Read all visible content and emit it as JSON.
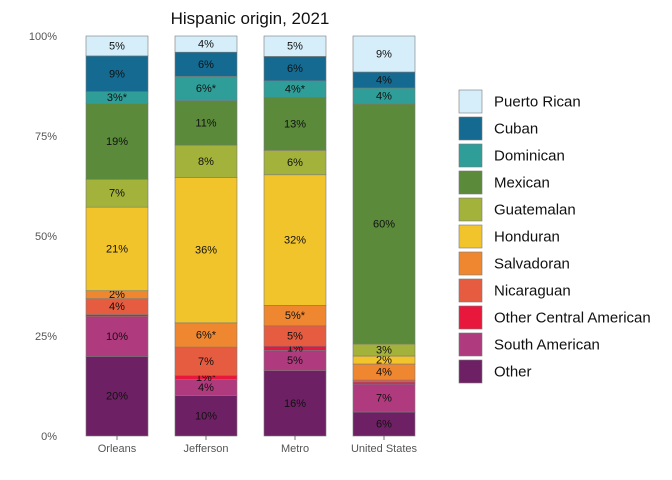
{
  "chart_data": {
    "type": "bar",
    "stacked": true,
    "title": "Hispanic origin, 2021",
    "xlabel": "",
    "ylabel": "",
    "ylim": [
      0,
      100
    ],
    "y_ticks": [
      0,
      25,
      50,
      75,
      100
    ],
    "y_tick_labels": [
      "0%",
      "25%",
      "50%",
      "75%",
      "100%"
    ],
    "categories": [
      "Orleans",
      "Jefferson",
      "Metro",
      "United States"
    ],
    "legend_position": "right",
    "grid": false,
    "series": [
      {
        "name": "Other",
        "color": "#6e2064",
        "values": [
          20,
          10,
          16,
          6
        ],
        "labels": [
          "20%",
          "10%",
          "16%",
          "6%"
        ]
      },
      {
        "name": "South American",
        "color": "#b03a7e",
        "values": [
          10,
          4,
          5,
          7
        ],
        "labels": [
          "10%",
          "4%",
          "5%",
          "7%"
        ]
      },
      {
        "name": "Other Central American",
        "color": "#e8173c",
        "values": [
          0.5,
          1,
          1,
          0.5
        ],
        "labels": [
          "",
          "1%*",
          "1%",
          ""
        ]
      },
      {
        "name": "Nicaraguan",
        "color": "#e65c40",
        "values": [
          4,
          7,
          5,
          0.5
        ],
        "labels": [
          "4%",
          "7%",
          "5%",
          ""
        ]
      },
      {
        "name": "Salvadoran",
        "color": "#ef8731",
        "values": [
          2,
          6,
          5,
          4
        ],
        "labels": [
          "2%",
          "6%*",
          "5%*",
          "4%"
        ]
      },
      {
        "name": "Honduran",
        "color": "#f2c42c",
        "values": [
          21,
          36,
          32,
          2
        ],
        "labels": [
          "21%",
          "36%",
          "32%",
          "2%"
        ]
      },
      {
        "name": "Guatemalan",
        "color": "#a3b23a",
        "values": [
          7,
          8,
          6,
          3
        ],
        "labels": [
          "7%",
          "8%",
          "6%",
          "3%"
        ]
      },
      {
        "name": "Mexican",
        "color": "#5a8a3a",
        "values": [
          19,
          11,
          13,
          60
        ],
        "labels": [
          "19%",
          "11%",
          "13%",
          "60%"
        ]
      },
      {
        "name": "Dominican",
        "color": "#2f9e98",
        "values": [
          3,
          6,
          4,
          4
        ],
        "labels": [
          "3%*",
          "6%*",
          "4%*",
          "4%"
        ]
      },
      {
        "name": "Cuban",
        "color": "#146a91",
        "values": [
          9,
          6,
          6,
          4
        ],
        "labels": [
          "9%",
          "6%",
          "6%",
          "4%"
        ]
      },
      {
        "name": "Puerto Rican",
        "color": "#d6eefa",
        "values": [
          5,
          4,
          5,
          9
        ],
        "labels": [
          "5%",
          "4%",
          "5%",
          "9%"
        ]
      }
    ]
  }
}
